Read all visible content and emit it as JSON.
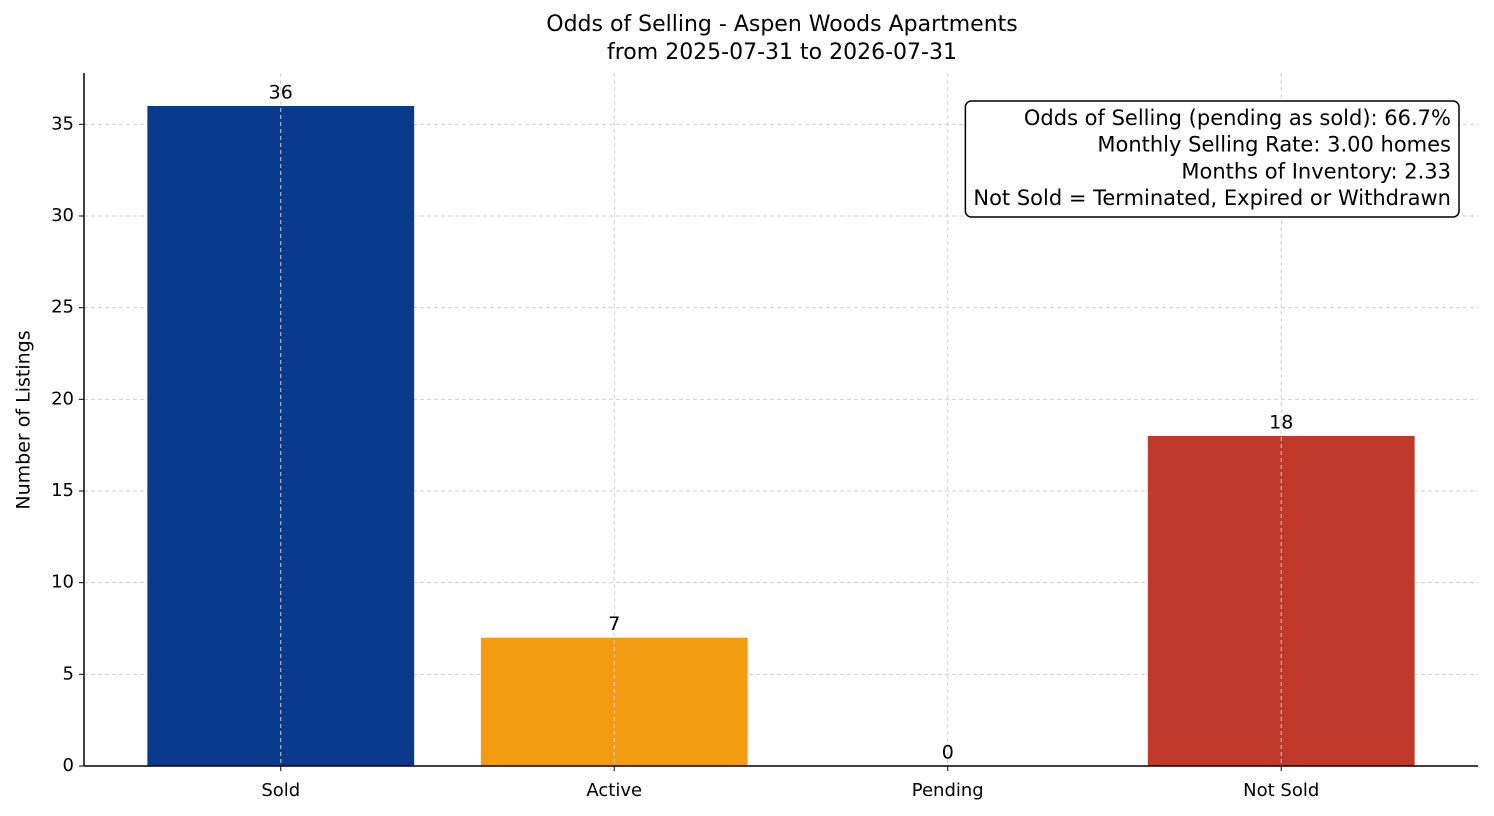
{
  "chart_data": {
    "type": "bar",
    "title": "Odds of Selling - Aspen Woods Apartments",
    "subtitle": "from 2025-07-31 to 2026-07-31",
    "ylabel": "Number of Listings",
    "categories": [
      "Sold",
      "Active",
      "Pending",
      "Not Sold"
    ],
    "values": [
      36,
      7,
      0,
      18
    ],
    "colors": [
      "#0a3a8c",
      "#f39c12",
      "#c0392b",
      "#c0392b"
    ],
    "ylim": [
      0,
      37.8
    ],
    "yticks": [
      0,
      5,
      10,
      15,
      20,
      25,
      30,
      35
    ],
    "grid": true,
    "annotation_lines": [
      "Odds of Selling (pending as sold): 66.7%",
      "Monthly Selling Rate: 3.00 homes",
      "Months of Inventory: 2.33",
      "Not Sold = Terminated, Expired or Withdrawn"
    ]
  }
}
